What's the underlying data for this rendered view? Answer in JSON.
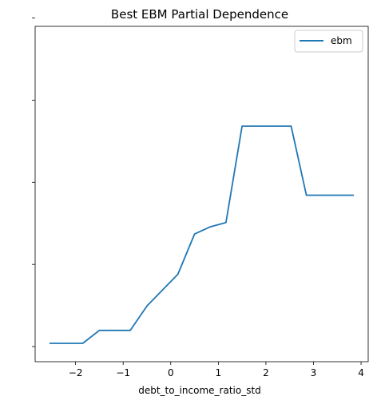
{
  "chart_data": {
    "type": "line",
    "title": "Best EBM Partial Dependence",
    "xlabel": "debt_to_income_ratio_std",
    "ylabel": "",
    "xlim": [
      -2.85,
      4.15
    ],
    "ylim": [
      0,
      1
    ],
    "xticks": [
      -2,
      -1,
      0,
      1,
      2,
      3,
      4
    ],
    "xtick_labels": [
      "−2",
      "−1",
      "0",
      "1",
      "2",
      "3",
      "4"
    ],
    "yticks": [
      0.045,
      0.29,
      0.535,
      0.78,
      1.025
    ],
    "ytick_labels": [
      "",
      "",
      "",
      "",
      ""
    ],
    "grid": false,
    "legend_position": "top-right",
    "series": [
      {
        "name": "ebm",
        "color": "#1f77b4",
        "x": [
          -2.55,
          -1.85,
          -1.5,
          -0.85,
          -0.5,
          0.15,
          0.5,
          0.83,
          1.16,
          1.5,
          2.53,
          2.85,
          3.85
        ],
        "y": [
          0.0,
          0.0,
          0.045,
          0.045,
          0.13,
          0.24,
          0.38,
          0.405,
          0.42,
          0.755,
          0.755,
          0.515,
          0.515
        ]
      }
    ]
  }
}
